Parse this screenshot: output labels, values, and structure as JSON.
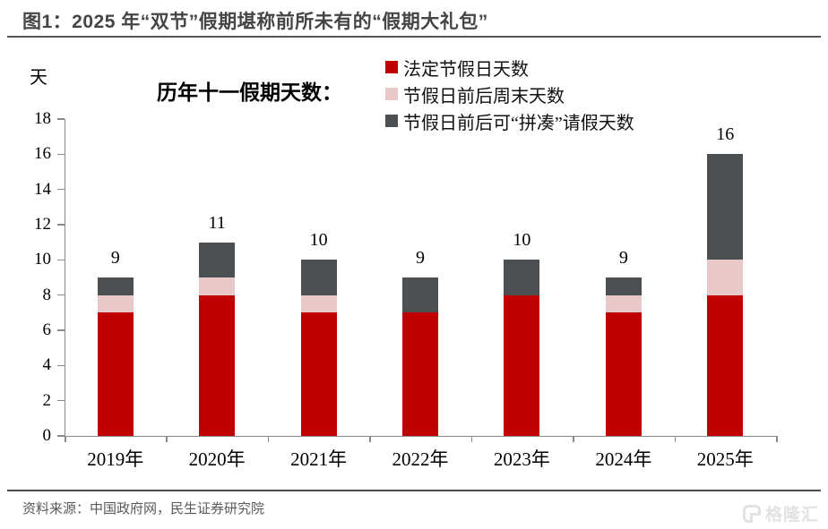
{
  "header": {
    "title": "图1：2025 年“双节”假期堪称前所未有的“假期大礼包”"
  },
  "chart": {
    "unit_label": "天",
    "subtitle": "历年十一假期天数：",
    "legend": [
      {
        "label": "法定节假日天数",
        "color": "#c00000"
      },
      {
        "label": "节假日前后周末天数",
        "color": "#e9c8c9"
      },
      {
        "label": "节假日前后可“拼凑”请假天数",
        "color": "#4d5052"
      }
    ]
  },
  "chart_data": {
    "type": "bar",
    "stacked": true,
    "title": "历年十一假期天数：",
    "ylabel": "天",
    "xlabel": "",
    "ylim": [
      0,
      18
    ],
    "yticks": [
      0,
      2,
      4,
      6,
      8,
      10,
      12,
      14,
      16,
      18
    ],
    "grid": false,
    "legend_position": "top",
    "categories": [
      "2019年",
      "2020年",
      "2021年",
      "2022年",
      "2023年",
      "2024年",
      "2025年"
    ],
    "series": [
      {
        "name": "法定节假日天数",
        "color": "#c00000",
        "values": [
          7,
          8,
          7,
          7,
          8,
          7,
          8
        ]
      },
      {
        "name": "节假日前后周末天数",
        "color": "#e9c8c9",
        "values": [
          1,
          1,
          1,
          0,
          0,
          1,
          2
        ]
      },
      {
        "name": "节假日前后可“拼凑”请假天数",
        "color": "#4d5052",
        "values": [
          1,
          2,
          2,
          2,
          2,
          1,
          6
        ]
      }
    ],
    "totals": [
      9,
      11,
      10,
      9,
      10,
      9,
      16
    ]
  },
  "footer": {
    "source": "资料来源：中国政府网，民生证券研究院",
    "watermark": "格隆汇"
  },
  "colors": {
    "statutory_red": "#c00000",
    "weekend_pink": "#e9c8c9",
    "leave_gray": "#4d5052",
    "axis_gray": "#8a8a8a",
    "title_gray": "#454545"
  }
}
